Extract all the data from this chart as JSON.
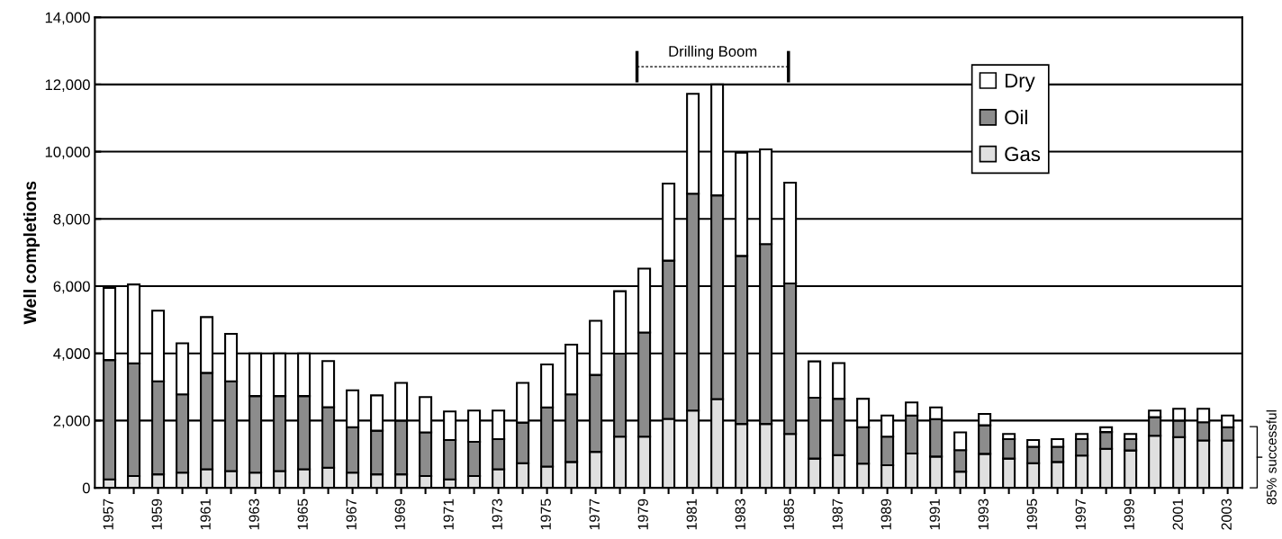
{
  "chart_data": {
    "type": "bar",
    "stacked": true,
    "ylabel": "Well completions",
    "categories": [
      "1957",
      null,
      "1959",
      null,
      "1961",
      null,
      "1963",
      null,
      "1965",
      null,
      "1967",
      null,
      "1969",
      null,
      "1971",
      null,
      "1973",
      null,
      "1975",
      null,
      "1977",
      null,
      "1979",
      null,
      "1981",
      null,
      "1983",
      null,
      "1985",
      null,
      "1987",
      null,
      "1989",
      null,
      "1991",
      null,
      "1993",
      null,
      "1995",
      null,
      "1997",
      null,
      "1999",
      null,
      "2001",
      null,
      "2003"
    ],
    "series": [
      {
        "name": "Gas",
        "color": "#e0e0e0",
        "values": [
          250,
          350,
          400,
          450,
          550,
          500,
          450,
          500,
          550,
          600,
          450,
          400,
          400,
          350,
          250,
          350,
          550,
          730,
          630,
          770,
          1070,
          1520,
          1520,
          2050,
          2300,
          2640,
          1900,
          1900,
          1600,
          870,
          970,
          720,
          670,
          1020,
          930,
          480,
          1010,
          870,
          730,
          770,
          960,
          1160,
          1110,
          1550,
          1510,
          1410,
          1410
        ]
      },
      {
        "name": "Oil",
        "color": "#8c8c8c",
        "values": [
          3550,
          3350,
          2770,
          2330,
          2870,
          2670,
          2280,
          2230,
          2180,
          1800,
          1350,
          1300,
          1600,
          1300,
          1170,
          1020,
          900,
          1210,
          1760,
          2010,
          2290,
          2470,
          3100,
          4710,
          6450,
          6060,
          5000,
          5350,
          4480,
          1810,
          1680,
          1080,
          850,
          1130,
          1110,
          640,
          850,
          580,
          490,
          450,
          490,
          500,
          340,
          550,
          490,
          540,
          390
        ]
      },
      {
        "name": "Dry",
        "color": "#ffffff",
        "values": [
          2150,
          2350,
          2100,
          1520,
          1660,
          1410,
          1270,
          1270,
          1270,
          1370,
          1100,
          1050,
          1120,
          1050,
          850,
          930,
          850,
          1180,
          1280,
          1480,
          1610,
          1860,
          1900,
          2290,
          2970,
          3300,
          3070,
          2820,
          3000,
          1080,
          1060,
          850,
          630,
          390,
          350,
          530,
          340,
          150,
          200,
          230,
          150,
          140,
          150,
          200,
          350,
          400,
          350
        ]
      }
    ],
    "ylim": [
      0,
      14000
    ],
    "yticks": [
      0,
      {
        "value": 2000,
        "label": "2,000"
      },
      {
        "value": 4000,
        "label": "4,000"
      },
      {
        "value": 6000,
        "label": "6,000"
      },
      {
        "value": 8000,
        "label": "8,000"
      },
      {
        "value": 10000,
        "label": "10,000"
      },
      {
        "value": 12000,
        "label": "12,000"
      },
      {
        "value": 14000,
        "label": "14,000"
      }
    ],
    "grid": "y",
    "legend": "top right",
    "annotations": [
      "Drilling Boom",
      "85% successful"
    ]
  }
}
